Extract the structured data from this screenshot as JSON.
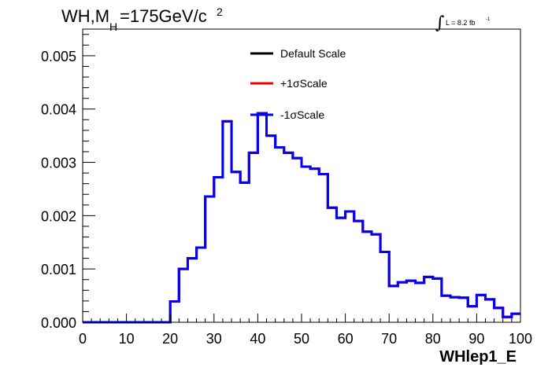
{
  "chart_data": {
    "type": "line",
    "title_parts": {
      "main": "WH,M",
      "sub": "H",
      "rest": "=175GeV/c",
      "sup": "2"
    },
    "lumi": {
      "integral": "∫",
      "text": "L = 8.2 fb",
      "sup": "-1"
    },
    "xlabel": "WHlep1_E",
    "ylabel": "",
    "xlim": [
      0,
      100
    ],
    "ylim": [
      0,
      0.0055
    ],
    "x_ticks": [
      "0",
      "10",
      "20",
      "30",
      "40",
      "50",
      "60",
      "70",
      "80",
      "90",
      "100"
    ],
    "y_ticks": [
      "0.000",
      "0.001",
      "0.002",
      "0.003",
      "0.004",
      "0.005"
    ],
    "bin_edges": [
      0,
      2,
      4,
      6,
      8,
      10,
      12,
      14,
      16,
      18,
      20,
      22,
      24,
      26,
      28,
      30,
      32,
      34,
      36,
      38,
      40,
      42,
      44,
      46,
      48,
      50,
      52,
      54,
      56,
      58,
      60,
      62,
      64,
      66,
      68,
      70,
      72,
      74,
      76,
      78,
      80,
      82,
      84,
      86,
      88,
      90,
      92,
      94,
      96,
      98,
      100
    ],
    "series": [
      {
        "name": "Default Scale",
        "color": "#000000",
        "values": [
          0,
          0,
          0,
          0,
          0,
          0,
          0,
          0,
          0,
          0,
          0.00039,
          0.001,
          0.0012,
          0.0014,
          0.00236,
          0.00272,
          0.00377,
          0.00282,
          0.00262,
          0.00318,
          0.00392,
          0.0035,
          0.00328,
          0.00318,
          0.00308,
          0.00292,
          0.00288,
          0.00278,
          0.00215,
          0.00196,
          0.00208,
          0.0019,
          0.0017,
          0.00165,
          0.00132,
          0.00068,
          0.00075,
          0.00078,
          0.00074,
          0.00085,
          0.00082,
          0.0005,
          0.00047,
          0.00046,
          0.0003,
          0.00051,
          0.00043,
          0.00027,
          0.0001,
          0.00016
        ]
      },
      {
        "name": "+1σScale",
        "color": "#ff0000",
        "values": [
          0,
          0,
          0,
          0,
          0,
          0,
          0,
          0,
          0,
          0,
          0.00039,
          0.001,
          0.0012,
          0.0014,
          0.00236,
          0.00272,
          0.00377,
          0.00282,
          0.00262,
          0.00318,
          0.00392,
          0.0035,
          0.00328,
          0.00318,
          0.00308,
          0.00292,
          0.00288,
          0.00278,
          0.00215,
          0.00196,
          0.00208,
          0.0019,
          0.0017,
          0.00165,
          0.00132,
          0.00068,
          0.00075,
          0.00078,
          0.00074,
          0.00085,
          0.00082,
          0.0005,
          0.00047,
          0.00046,
          0.0003,
          0.00051,
          0.00043,
          0.00027,
          0.0001,
          0.00016
        ]
      },
      {
        "name": "-1σScale",
        "color": "#0000ff",
        "values": [
          0,
          0,
          0,
          0,
          0,
          0,
          0,
          0,
          0,
          0,
          0.00039,
          0.001,
          0.0012,
          0.0014,
          0.00236,
          0.00272,
          0.00377,
          0.00282,
          0.00262,
          0.00318,
          0.00392,
          0.0035,
          0.00328,
          0.00318,
          0.00308,
          0.00292,
          0.00288,
          0.00278,
          0.00215,
          0.00196,
          0.00208,
          0.0019,
          0.0017,
          0.00165,
          0.00132,
          0.00068,
          0.00075,
          0.00078,
          0.00074,
          0.00085,
          0.00082,
          0.0005,
          0.00047,
          0.00046,
          0.0003,
          0.00051,
          0.00043,
          0.00027,
          0.0001,
          0.00016
        ]
      }
    ],
    "legend_position": "top-center",
    "grid": false
  }
}
